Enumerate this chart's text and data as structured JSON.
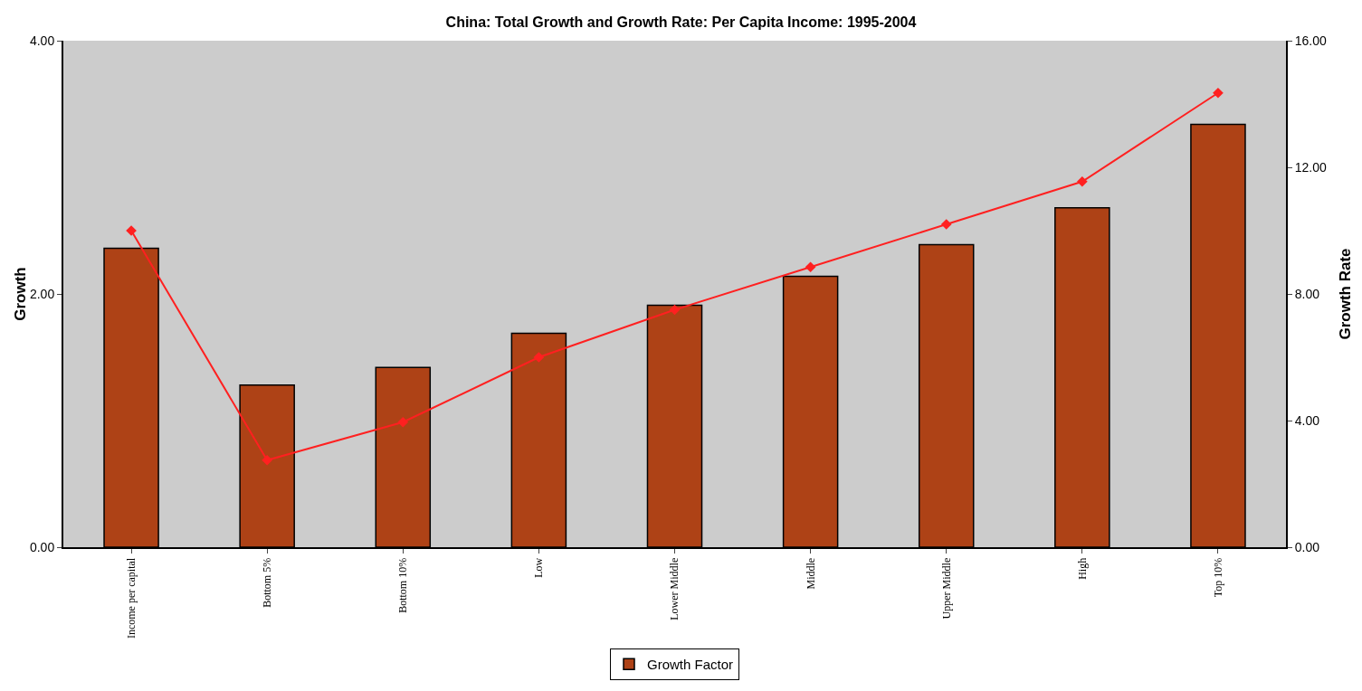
{
  "chart_data": {
    "type": "bar",
    "title": "China: Total Growth and Growth Rate: Per Capita Income: 1995-2004",
    "ylabel": "Growth",
    "y2label": "Growth Rate",
    "categories": [
      "Income per capital",
      "Bottom 5%",
      "Bottom 10%",
      "Low",
      "Lower Middle",
      "Middle",
      "Upper Middle",
      "High",
      "Top 10%"
    ],
    "series": [
      {
        "name": "Growth Factor",
        "color": "#ae4216",
        "values": [
          2.36,
          1.28,
          1.42,
          1.69,
          1.91,
          2.14,
          2.39,
          2.68,
          3.34
        ]
      },
      {
        "type": "line",
        "axis": "y2",
        "color": "#ff2020",
        "marker": "diamond",
        "values": [
          10.0,
          2.75,
          3.95,
          6.0,
          7.5,
          8.85,
          10.2,
          11.55,
          14.35
        ]
      }
    ],
    "ylim": [
      0,
      4
    ],
    "yticks": [
      {
        "value": 0,
        "label": "0.00"
      },
      {
        "value": 2,
        "label": "2.00"
      },
      {
        "value": 4,
        "label": "4.00"
      }
    ],
    "y2lim": [
      0,
      16
    ],
    "y2ticks": [
      {
        "value": 0,
        "label": "0.00"
      },
      {
        "value": 4,
        "label": "4.00"
      },
      {
        "value": 8,
        "label": "8.00"
      },
      {
        "value": 12,
        "label": "12.00"
      },
      {
        "value": 16,
        "label": "16.00"
      }
    ],
    "grid": false,
    "legend": "bottom"
  }
}
